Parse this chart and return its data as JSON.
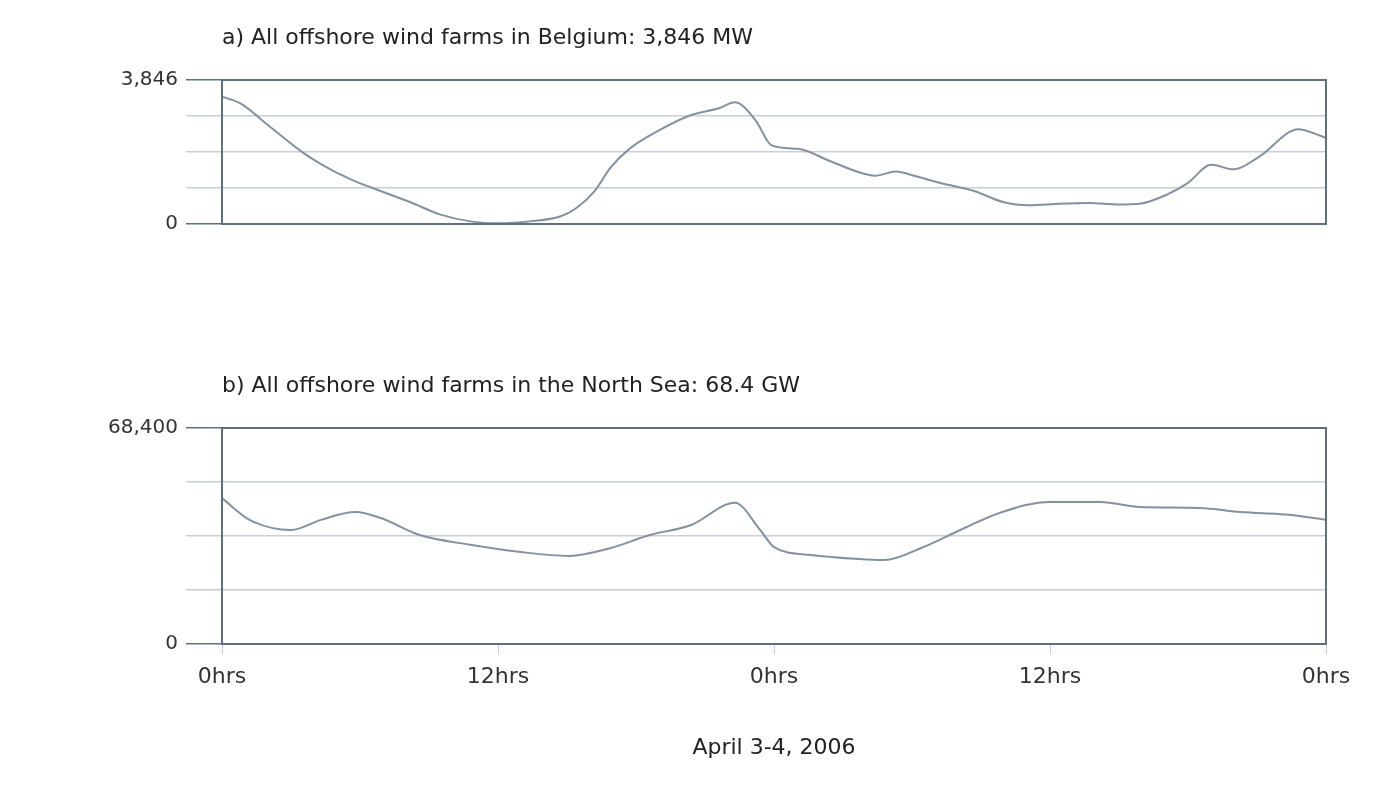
{
  "chart_data": [
    {
      "type": "line",
      "title": "a) All offshore wind farms in Belgium: 3,846 MW",
      "x": [
        "2006-04-03T00:00",
        "2006-04-03T00:48",
        "2006-04-03T02:06",
        "2006-04-03T03:24",
        "2006-04-03T04:18",
        "2006-04-03T05:36",
        "2006-04-03T06:54",
        "2006-04-03T08:12",
        "2006-04-03T09:30",
        "2006-04-03T10:48",
        "2006-04-03T12:06",
        "2006-04-03T13:24",
        "2006-04-03T14:42",
        "2006-04-03T15:21",
        "2006-04-03T16:12",
        "2006-04-03T16:54",
        "2006-04-03T17:42",
        "2006-04-03T19:00",
        "2006-04-03T20:24",
        "2006-04-03T21:36",
        "2006-04-03T22:18",
        "2006-04-03T23:12",
        "2006-04-03T23:54",
        "2006-04-04T01:06",
        "2006-04-04T02:24",
        "2006-04-04T03:42",
        "2006-04-04T04:24",
        "2006-04-04T05:18",
        "2006-04-04T06:06",
        "2006-04-04T07:12",
        "2006-04-04T08:42",
        "2006-04-04T10:00",
        "2006-04-04T11:06",
        "2006-04-04T12:24",
        "2006-04-04T13:42",
        "2006-04-04T15:00",
        "2006-04-04T15:54",
        "2006-04-04T17:06",
        "2006-04-04T18:00",
        "2006-04-04T19:00",
        "2006-04-04T20:00",
        "2006-04-04T21:06",
        "2006-04-04T22:48",
        "2006-04-04T23:42",
        "2006-04-05T00:00"
      ],
      "series": [
        {
          "color": "#8391a0",
          "values": [
            3400,
            3220,
            2590,
            1960,
            1600,
            1190,
            880,
            580,
            250,
            70,
            20,
            70,
            200,
            400,
            880,
            1510,
            2000,
            2500,
            2910,
            3090,
            3250,
            2770,
            2100,
            2000,
            1690,
            1380,
            1290,
            1400,
            1290,
            1100,
            880,
            580,
            500,
            540,
            560,
            520,
            540,
            790,
            1100,
            1580,
            1460,
            1800,
            2530,
            2370,
            2300
          ]
        }
      ],
      "xlim": [
        "2006-04-03T00:00",
        "2006-04-05T00:00"
      ],
      "ylim": [
        0,
        3846
      ],
      "yticks": [
        0,
        {
          "value": 961.5,
          "label": null
        },
        {
          "value": 1923,
          "label": null
        },
        {
          "value": 2884.5,
          "label": null
        },
        {
          "value": 3846,
          "label": "3,846"
        }
      ],
      "grid": "y",
      "tick_labels": "y"
    },
    {
      "type": "line",
      "title": "b) All offshore wind farms in the North Sea: 68.4 GW",
      "xlabel": "April 3-4, 2006",
      "x": [
        "2006-04-03T00:00",
        "2006-04-03T01:12",
        "2006-04-03T03:00",
        "2006-04-03T04:18",
        "2006-04-03T05:48",
        "2006-04-03T06:54",
        "2006-04-03T08:36",
        "2006-04-03T10:48",
        "2006-04-03T13:00",
        "2006-04-03T15:06",
        "2006-04-03T16:54",
        "2006-04-03T18:36",
        "2006-04-03T20:24",
        "2006-04-03T22:18",
        "2006-04-03T23:24",
        "2006-04-04T00:00",
        "2006-04-04T01:36",
        "2006-04-04T03:42",
        "2006-04-04T04:48",
        "2006-04-04T06:24",
        "2006-04-04T08:06",
        "2006-04-04T09:48",
        "2006-04-04T12:00",
        "2006-04-04T14:12",
        "2006-04-04T15:54",
        "2006-04-04T18:30",
        "2006-04-04T20:18",
        "2006-04-04T22:24",
        "2006-04-05T00:00"
      ],
      "series": [
        {
          "color": "#8391a0",
          "values": [
            46200,
            39300,
            36100,
            39300,
            41800,
            39900,
            34500,
            31400,
            29100,
            27900,
            30400,
            34500,
            37700,
            44700,
            36100,
            30700,
            28200,
            26900,
            26600,
            30400,
            36100,
            41500,
            45000,
            45000,
            43400,
            43100,
            41800,
            40900,
            39300
          ]
        }
      ],
      "xlim": [
        "2006-04-03T00:00",
        "2006-04-05T00:00"
      ],
      "xticks": [
        {
          "value": "2006-04-03T00:00",
          "label": "0hrs"
        },
        {
          "value": "2006-04-03T12:00",
          "label": "12hrs"
        },
        {
          "value": "2006-04-04T00:00",
          "label": "0hrs"
        },
        {
          "value": "2006-04-04T12:00",
          "label": "12hrs"
        },
        {
          "value": "2006-04-05T00:00",
          "label": "0hrs"
        }
      ],
      "ylim": [
        0,
        68400
      ],
      "yticks": [
        0,
        {
          "value": 17100,
          "label": null
        },
        {
          "value": 34200,
          "label": null
        },
        {
          "value": 51300,
          "label": null
        },
        {
          "value": 68400,
          "label": "68,400"
        }
      ],
      "grid": "y"
    }
  ]
}
